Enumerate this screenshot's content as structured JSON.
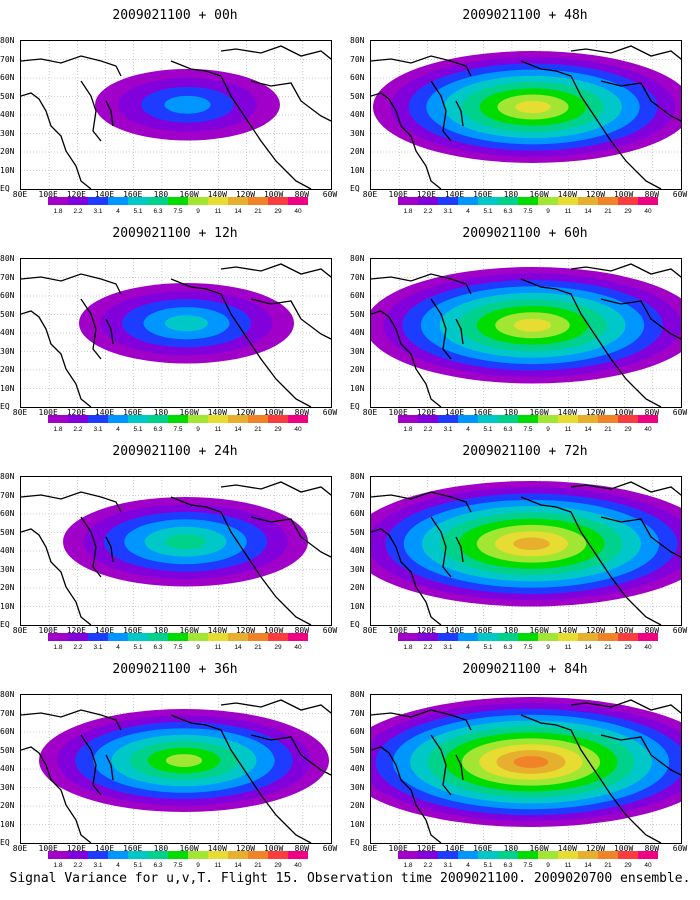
{
  "panels": [
    {
      "title": "2009021100 + 00h"
    },
    {
      "title": "2009021100 + 48h"
    },
    {
      "title": "2009021100 + 12h"
    },
    {
      "title": "2009021100 + 60h"
    },
    {
      "title": "2009021100 + 24h"
    },
    {
      "title": "2009021100 + 72h"
    },
    {
      "title": "2009021100 + 36h"
    },
    {
      "title": "2009021100 + 84h"
    }
  ],
  "lat_labels": [
    "80N",
    "70N",
    "60N",
    "50N",
    "40N",
    "30N",
    "20N",
    "10N",
    "EQ"
  ],
  "lon_labels": [
    "80E",
    "100E",
    "120E",
    "140E",
    "160E",
    "180",
    "160W",
    "140W",
    "120W",
    "100W",
    "80W",
    "60W"
  ],
  "colorbar": {
    "labels": [
      "1.8",
      "2.2",
      "3.1",
      "4",
      "5.1",
      "6.3",
      "7.5",
      "9",
      "11",
      "14",
      "21",
      "29",
      "40"
    ],
    "colors": [
      "#a000c8",
      "#8200dc",
      "#1e3cff",
      "#0096ff",
      "#00c8c8",
      "#00d28c",
      "#00dc00",
      "#a0e632",
      "#e6dc32",
      "#e6af2d",
      "#f08228",
      "#fa3c3c",
      "#f00082"
    ]
  },
  "caption": "Signal Variance for u,v,T. Flight 15. Observation time 2009021100. 2009020700 ensemble."
}
